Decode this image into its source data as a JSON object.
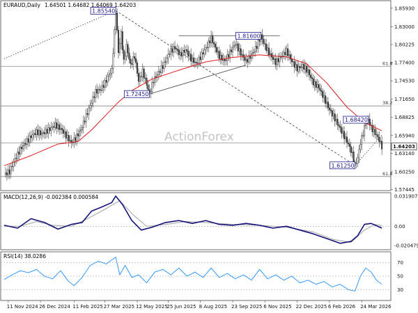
{
  "chart_data": {
    "type": "line",
    "title": "EURAUD,Daily",
    "ohlc": "1.64501 1.64682 1.64069 1.64203",
    "watermark": "ActionForex",
    "x_ticks": [
      "11 Nov 2024",
      "26 Dec 2024",
      "11 Feb 2025",
      "27 Mar 2025",
      "12 May 2025",
      "25 Jun 2025",
      "8 Aug 2025",
      "23 Sep 2025",
      "6 Nov 2025",
      "22 Dec 2025",
      "6 Feb 2026",
      "24 Mar 2026"
    ],
    "price_ticks": [
      "1.85930",
      "1.83000",
      "1.80225",
      "1.77400",
      "1.74530",
      "1.71650",
      "1.68825",
      "1.65940",
      "1.63140",
      "1.60250",
      "1.57445"
    ],
    "ylim": [
      1.574,
      1.87
    ],
    "current_price": "1.64203",
    "price_series": [
      {
        "t": 0,
        "v": 1.598
      },
      {
        "t": 4,
        "v": 1.603
      },
      {
        "t": 8,
        "v": 1.622
      },
      {
        "t": 12,
        "v": 1.638
      },
      {
        "t": 16,
        "v": 1.648
      },
      {
        "t": 20,
        "v": 1.658
      },
      {
        "t": 24,
        "v": 1.665
      },
      {
        "t": 28,
        "v": 1.662
      },
      {
        "t": 33,
        "v": 1.668
      },
      {
        "t": 38,
        "v": 1.676
      },
      {
        "t": 43,
        "v": 1.668
      },
      {
        "t": 47,
        "v": 1.656
      },
      {
        "t": 50,
        "v": 1.648
      },
      {
        "t": 53,
        "v": 1.655
      },
      {
        "t": 57,
        "v": 1.668
      },
      {
        "t": 61,
        "v": 1.69
      },
      {
        "t": 65,
        "v": 1.712
      },
      {
        "t": 68,
        "v": 1.728
      },
      {
        "t": 72,
        "v": 1.732
      },
      {
        "t": 75,
        "v": 1.742
      },
      {
        "t": 78,
        "v": 1.755
      },
      {
        "t": 80,
        "v": 1.762
      },
      {
        "t": 82,
        "v": 1.822
      },
      {
        "t": 83,
        "v": 1.8554
      },
      {
        "t": 85,
        "v": 1.79
      },
      {
        "t": 87,
        "v": 1.82
      },
      {
        "t": 89,
        "v": 1.775
      },
      {
        "t": 91,
        "v": 1.8
      },
      {
        "t": 94,
        "v": 1.77
      },
      {
        "t": 97,
        "v": 1.784
      },
      {
        "t": 100,
        "v": 1.745
      },
      {
        "t": 103,
        "v": 1.76
      },
      {
        "t": 106,
        "v": 1.74
      },
      {
        "t": 108,
        "v": 1.7245
      },
      {
        "t": 111,
        "v": 1.746
      },
      {
        "t": 115,
        "v": 1.758
      },
      {
        "t": 119,
        "v": 1.772
      },
      {
        "t": 123,
        "v": 1.79
      },
      {
        "t": 127,
        "v": 1.798
      },
      {
        "t": 131,
        "v": 1.786
      },
      {
        "t": 135,
        "v": 1.794
      },
      {
        "t": 139,
        "v": 1.78
      },
      {
        "t": 143,
        "v": 1.772
      },
      {
        "t": 147,
        "v": 1.786
      },
      {
        "t": 151,
        "v": 1.8
      },
      {
        "t": 154,
        "v": 1.813
      },
      {
        "t": 157,
        "v": 1.797
      },
      {
        "t": 160,
        "v": 1.784
      },
      {
        "t": 164,
        "v": 1.776
      },
      {
        "t": 168,
        "v": 1.79
      },
      {
        "t": 172,
        "v": 1.804
      },
      {
        "t": 176,
        "v": 1.788
      },
      {
        "t": 180,
        "v": 1.776
      },
      {
        "t": 184,
        "v": 1.786
      },
      {
        "t": 188,
        "v": 1.8
      },
      {
        "t": 191,
        "v": 1.816
      },
      {
        "t": 194,
        "v": 1.8
      },
      {
        "t": 198,
        "v": 1.786
      },
      {
        "t": 202,
        "v": 1.774
      },
      {
        "t": 206,
        "v": 1.783
      },
      {
        "t": 210,
        "v": 1.792
      },
      {
        "t": 214,
        "v": 1.776
      },
      {
        "t": 218,
        "v": 1.764
      },
      {
        "t": 222,
        "v": 1.769
      },
      {
        "t": 226,
        "v": 1.76
      },
      {
        "t": 230,
        "v": 1.742
      },
      {
        "t": 234,
        "v": 1.735
      },
      {
        "t": 238,
        "v": 1.718
      },
      {
        "t": 242,
        "v": 1.7
      },
      {
        "t": 246,
        "v": 1.686
      },
      {
        "t": 250,
        "v": 1.67
      },
      {
        "t": 253,
        "v": 1.658
      },
      {
        "t": 256,
        "v": 1.646
      },
      {
        "t": 259,
        "v": 1.63
      },
      {
        "t": 261,
        "v": 1.6125
      },
      {
        "t": 263,
        "v": 1.624
      },
      {
        "t": 265,
        "v": 1.648
      },
      {
        "t": 267,
        "v": 1.663
      },
      {
        "t": 269,
        "v": 1.68
      },
      {
        "t": 271,
        "v": 1.6842
      },
      {
        "t": 273,
        "v": 1.672
      },
      {
        "t": 275,
        "v": 1.666
      },
      {
        "t": 277,
        "v": 1.66
      },
      {
        "t": 279,
        "v": 1.652
      },
      {
        "t": 281,
        "v": 1.642
      }
    ],
    "ma_series": [
      {
        "t": 0,
        "v": 1.612
      },
      {
        "t": 20,
        "v": 1.628
      },
      {
        "t": 40,
        "v": 1.646
      },
      {
        "t": 55,
        "v": 1.65
      },
      {
        "t": 65,
        "v": 1.668
      },
      {
        "t": 75,
        "v": 1.69
      },
      {
        "t": 85,
        "v": 1.712
      },
      {
        "t": 95,
        "v": 1.73
      },
      {
        "t": 110,
        "v": 1.748
      },
      {
        "t": 130,
        "v": 1.762
      },
      {
        "t": 150,
        "v": 1.775
      },
      {
        "t": 170,
        "v": 1.782
      },
      {
        "t": 190,
        "v": 1.786
      },
      {
        "t": 210,
        "v": 1.783
      },
      {
        "t": 225,
        "v": 1.772
      },
      {
        "t": 240,
        "v": 1.742
      },
      {
        "t": 255,
        "v": 1.704
      },
      {
        "t": 268,
        "v": 1.68
      },
      {
        "t": 281,
        "v": 1.667
      }
    ],
    "hlines": [
      {
        "label": "61.8",
        "v": 1.768
      },
      {
        "label": "38.2",
        "v": 1.706
      },
      {
        "label": "",
        "v": 1.648
      },
      {
        "label": "61.8",
        "v": 1.595
      }
    ],
    "annotations": [
      {
        "text": "1.85540",
        "t": 83,
        "v": 1.8554,
        "side": "left"
      },
      {
        "text": "1.72450",
        "t": 108,
        "v": 1.7245,
        "side": "left"
      },
      {
        "text": "1.81600",
        "t": 191,
        "v": 1.816,
        "side": "left"
      },
      {
        "text": "1.61250",
        "t": 261,
        "v": 1.6125,
        "side": "left"
      },
      {
        "text": "1.68420",
        "t": 271,
        "v": 1.6842,
        "side": "left"
      }
    ],
    "trendlines": [
      {
        "style": "dotted",
        "from": {
          "t": 0,
          "v": 1.78
        },
        "to": {
          "t": 83,
          "v": 1.8554
        }
      },
      {
        "style": "dashed",
        "from": {
          "t": 83,
          "v": 1.8554
        },
        "to": {
          "t": 261,
          "v": 1.6125
        }
      },
      {
        "style": "dotted",
        "from": {
          "t": 261,
          "v": 1.6125
        },
        "to": {
          "t": 281,
          "v": 1.66
        }
      },
      {
        "style": "solid",
        "from": {
          "t": 108,
          "v": 1.7245
        },
        "to": {
          "t": 180,
          "v": 1.77
        }
      },
      {
        "style": "solid",
        "from": {
          "t": 130,
          "v": 1.816
        },
        "to": {
          "t": 205,
          "v": 1.816
        }
      }
    ],
    "macd": {
      "title": "MACD(12,26,9) -0.002384 0.000584",
      "ticks": [
        "0.031907",
        "0.00",
        "-0.020479"
      ],
      "ylim": [
        -0.024,
        0.034
      ],
      "zero": 0,
      "line": [
        {
          "t": 0,
          "v": 0.001
        },
        {
          "t": 10,
          "v": -0.002
        },
        {
          "t": 20,
          "v": 0.008
        },
        {
          "t": 30,
          "v": 0.004
        },
        {
          "t": 40,
          "v": -0.003
        },
        {
          "t": 50,
          "v": 0.002
        },
        {
          "t": 58,
          "v": 0.004
        },
        {
          "t": 65,
          "v": 0.016
        },
        {
          "t": 72,
          "v": 0.02
        },
        {
          "t": 80,
          "v": 0.025
        },
        {
          "t": 83,
          "v": 0.0319
        },
        {
          "t": 88,
          "v": 0.023
        },
        {
          "t": 95,
          "v": 0.006
        },
        {
          "t": 102,
          "v": -0.004
        },
        {
          "t": 110,
          "v": -0.001
        },
        {
          "t": 120,
          "v": 0.004
        },
        {
          "t": 130,
          "v": 0.006
        },
        {
          "t": 140,
          "v": 0.003
        },
        {
          "t": 150,
          "v": 0.006
        },
        {
          "t": 160,
          "v": 0.002
        },
        {
          "t": 170,
          "v": 0.001
        },
        {
          "t": 180,
          "v": 0.003
        },
        {
          "t": 190,
          "v": 0.001
        },
        {
          "t": 200,
          "v": -0.002
        },
        {
          "t": 210,
          "v": 0.0
        },
        {
          "t": 220,
          "v": -0.004
        },
        {
          "t": 230,
          "v": -0.008
        },
        {
          "t": 240,
          "v": -0.013
        },
        {
          "t": 250,
          "v": -0.018
        },
        {
          "t": 258,
          "v": -0.016
        },
        {
          "t": 263,
          "v": -0.01
        },
        {
          "t": 268,
          "v": 0.002
        },
        {
          "t": 273,
          "v": 0.003
        },
        {
          "t": 281,
          "v": -0.002
        }
      ],
      "signal": [
        {
          "t": 0,
          "v": 0.0
        },
        {
          "t": 12,
          "v": 0.0
        },
        {
          "t": 24,
          "v": 0.005
        },
        {
          "t": 36,
          "v": 0.001
        },
        {
          "t": 50,
          "v": 0.0
        },
        {
          "t": 62,
          "v": 0.008
        },
        {
          "t": 75,
          "v": 0.018
        },
        {
          "t": 86,
          "v": 0.027
        },
        {
          "t": 96,
          "v": 0.012
        },
        {
          "t": 106,
          "v": 0.0
        },
        {
          "t": 120,
          "v": 0.002
        },
        {
          "t": 135,
          "v": 0.005
        },
        {
          "t": 150,
          "v": 0.004
        },
        {
          "t": 170,
          "v": 0.002
        },
        {
          "t": 190,
          "v": 0.001
        },
        {
          "t": 210,
          "v": -0.001
        },
        {
          "t": 230,
          "v": -0.006
        },
        {
          "t": 245,
          "v": -0.014
        },
        {
          "t": 258,
          "v": -0.017
        },
        {
          "t": 268,
          "v": -0.004
        },
        {
          "t": 276,
          "v": 0.002
        },
        {
          "t": 281,
          "v": 0.0006
        }
      ]
    },
    "rsi": {
      "title": "RSI(14) 38.0286",
      "ticks": [
        "70",
        "50",
        "30"
      ],
      "ylim": [
        15,
        85
      ],
      "levels": [
        70,
        50,
        30
      ],
      "line": [
        {
          "t": 0,
          "v": 45
        },
        {
          "t": 6,
          "v": 52
        },
        {
          "t": 12,
          "v": 58
        },
        {
          "t": 18,
          "v": 55
        },
        {
          "t": 24,
          "v": 60
        },
        {
          "t": 30,
          "v": 50
        },
        {
          "t": 36,
          "v": 46
        },
        {
          "t": 42,
          "v": 58
        },
        {
          "t": 48,
          "v": 42
        },
        {
          "t": 52,
          "v": 36
        },
        {
          "t": 58,
          "v": 48
        },
        {
          "t": 64,
          "v": 66
        },
        {
          "t": 70,
          "v": 72
        },
        {
          "t": 76,
          "v": 68
        },
        {
          "t": 80,
          "v": 74
        },
        {
          "t": 83,
          "v": 78
        },
        {
          "t": 86,
          "v": 52
        },
        {
          "t": 90,
          "v": 66
        },
        {
          "t": 95,
          "v": 48
        },
        {
          "t": 100,
          "v": 52
        },
        {
          "t": 106,
          "v": 40
        },
        {
          "t": 112,
          "v": 56
        },
        {
          "t": 118,
          "v": 60
        },
        {
          "t": 124,
          "v": 52
        },
        {
          "t": 130,
          "v": 62
        },
        {
          "t": 136,
          "v": 50
        },
        {
          "t": 142,
          "v": 56
        },
        {
          "t": 148,
          "v": 48
        },
        {
          "t": 154,
          "v": 62
        },
        {
          "t": 160,
          "v": 48
        },
        {
          "t": 166,
          "v": 54
        },
        {
          "t": 172,
          "v": 46
        },
        {
          "t": 178,
          "v": 52
        },
        {
          "t": 184,
          "v": 44
        },
        {
          "t": 190,
          "v": 60
        },
        {
          "t": 196,
          "v": 46
        },
        {
          "t": 202,
          "v": 52
        },
        {
          "t": 208,
          "v": 44
        },
        {
          "t": 214,
          "v": 50
        },
        {
          "t": 220,
          "v": 40
        },
        {
          "t": 226,
          "v": 44
        },
        {
          "t": 232,
          "v": 38
        },
        {
          "t": 238,
          "v": 42
        },
        {
          "t": 244,
          "v": 34
        },
        {
          "t": 250,
          "v": 38
        },
        {
          "t": 256,
          "v": 30
        },
        {
          "t": 261,
          "v": 28
        },
        {
          "t": 265,
          "v": 50
        },
        {
          "t": 269,
          "v": 62
        },
        {
          "t": 273,
          "v": 56
        },
        {
          "t": 277,
          "v": 44
        },
        {
          "t": 281,
          "v": 38
        }
      ]
    }
  }
}
